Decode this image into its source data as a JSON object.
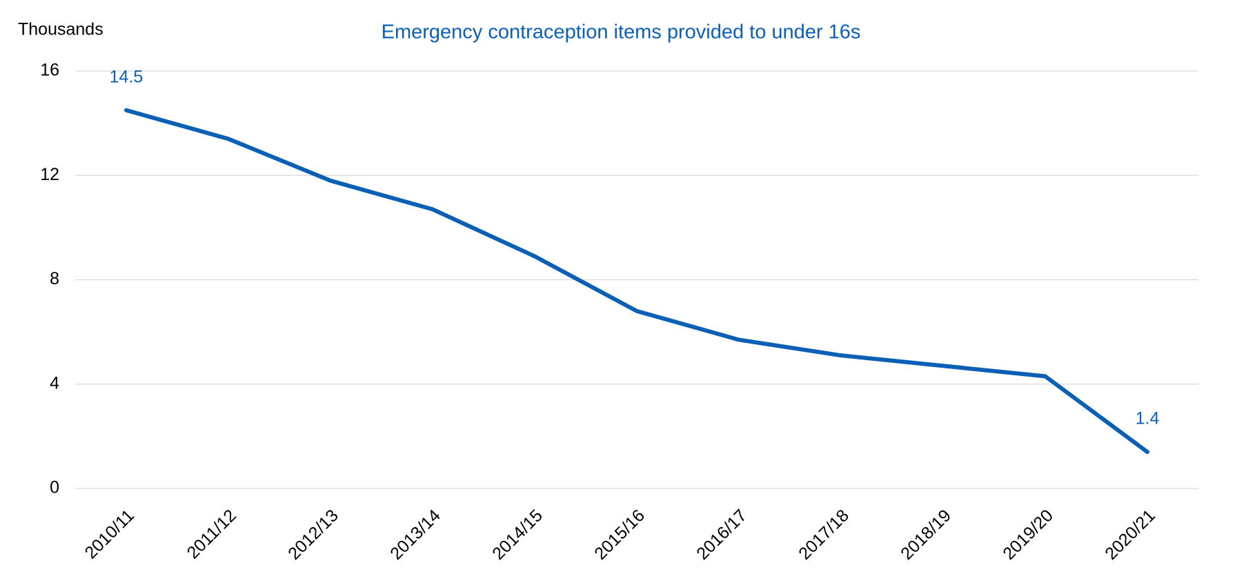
{
  "chart_data": {
    "type": "line",
    "title": "Emergency contraception items provided to under 16s",
    "y_label": "Thousands",
    "categories": [
      "2010/11",
      "2011/12",
      "2012/13",
      "2013/14",
      "2014/15",
      "2015/16",
      "2016/17",
      "2017/18",
      "2018/19",
      "2019/20",
      "2020/21"
    ],
    "series": [
      {
        "name": "Emergency contraception items",
        "color": "#0b5fb5",
        "values": [
          14.5,
          13.4,
          11.8,
          10.7,
          8.9,
          6.8,
          5.7,
          5.1,
          4.7,
          4.3,
          1.4
        ]
      }
    ],
    "ylim": [
      0,
      16
    ],
    "yticks": [
      0,
      4,
      8,
      12,
      16
    ],
    "grid": true
  }
}
